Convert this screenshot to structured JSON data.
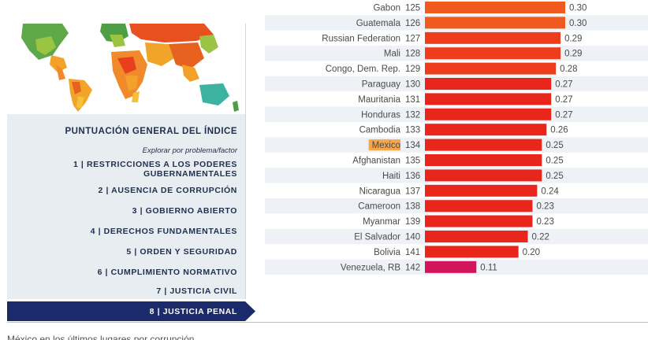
{
  "menu": {
    "title": "PUNTUACIÓN GENERAL DEL ÍNDICE",
    "subtitle": "Explorar por problema/factor",
    "items": [
      {
        "label_line1": "1 | RESTRICCIONES A LOS PODERES",
        "label_line2": "GUBERNAMENTALES"
      },
      {
        "label_line1": "2 | AUSENCIA DE CORRUPCIÓN"
      },
      {
        "label_line1": "3 | GOBIERNO ABIERTO"
      },
      {
        "label_line1": "4 | DERECHOS FUNDAMENTALES"
      },
      {
        "label_line1": "5 | ORDEN Y SEGURIDAD"
      },
      {
        "label_line1": "6 | CUMPLIMIENTO NORMATIVO"
      },
      {
        "label_line1": "7 | JUSTICIA CIVIL"
      }
    ],
    "active_item": "8 | JUSTICIA PENAL",
    "active_color": "#1b2a6b"
  },
  "caption": "México en los últimos lugares por corrupción",
  "colors": {
    "bar_orange": "#f05a1e",
    "bar_red": "#e8261c",
    "bar_crimson": "#d2145a",
    "highlight": "#f7a64a"
  },
  "chart_data": {
    "type": "bar",
    "orientation": "horizontal",
    "highlight": "Mexico",
    "xlim": [
      0,
      0.55
    ],
    "rows": [
      {
        "country": "Gabon",
        "rank": "125",
        "value": 0.3
      },
      {
        "country": "Guatemala",
        "rank": "126",
        "value": 0.3
      },
      {
        "country": "Russian Federation",
        "rank": "127",
        "value": 0.29
      },
      {
        "country": "Mali",
        "rank": "128",
        "value": 0.29
      },
      {
        "country": "Congo, Dem. Rep.",
        "rank": "129",
        "value": 0.28
      },
      {
        "country": "Paraguay",
        "rank": "130",
        "value": 0.27
      },
      {
        "country": "Mauritania",
        "rank": "131",
        "value": 0.27
      },
      {
        "country": "Honduras",
        "rank": "132",
        "value": 0.27
      },
      {
        "country": "Cambodia",
        "rank": "133",
        "value": 0.26
      },
      {
        "country": "Mexico",
        "rank": "134",
        "value": 0.25
      },
      {
        "country": "Afghanistan",
        "rank": "135",
        "value": 0.25
      },
      {
        "country": "Haiti",
        "rank": "136",
        "value": 0.25
      },
      {
        "country": "Nicaragua",
        "rank": "137",
        "value": 0.24
      },
      {
        "country": "Cameroon",
        "rank": "138",
        "value": 0.23
      },
      {
        "country": "Myanmar",
        "rank": "139",
        "value": 0.23
      },
      {
        "country": "El Salvador",
        "rank": "140",
        "value": 0.22
      },
      {
        "country": "Bolivia",
        "rank": "141",
        "value": 0.2
      },
      {
        "country": "Venezuela, RB",
        "rank": "142",
        "value": 0.11
      }
    ]
  }
}
